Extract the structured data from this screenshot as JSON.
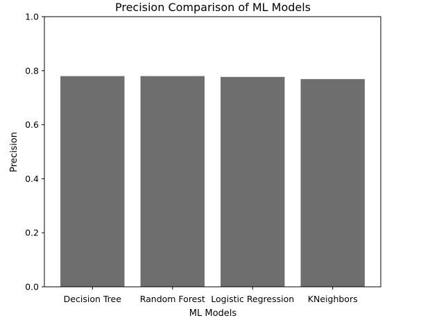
{
  "chart_data": {
    "type": "bar",
    "title": "Precision Comparison of ML Models",
    "xlabel": "ML Models",
    "ylabel": "Precision",
    "categories": [
      "Decision Tree",
      "Random Forest",
      "Logistic Regression",
      "KNeighbors"
    ],
    "values": [
      0.78,
      0.78,
      0.777,
      0.769
    ],
    "ylim": [
      0,
      1.0
    ],
    "yticks": [
      "0.0",
      "0.2",
      "0.4",
      "0.6",
      "0.8",
      "1.0"
    ],
    "grid": false,
    "bar_color": "#6e6e6e"
  }
}
